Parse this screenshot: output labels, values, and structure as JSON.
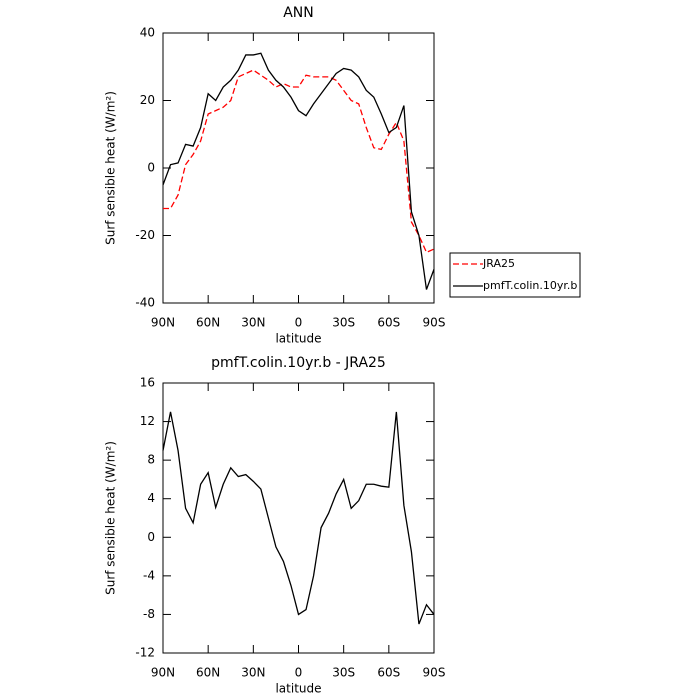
{
  "chart_data": [
    {
      "type": "line",
      "title": "ANN",
      "xlabel": "latitude",
      "ylabel": "Surf sensible heat (W/m²)",
      "x": [
        90,
        85,
        80,
        75,
        70,
        65,
        60,
        55,
        50,
        45,
        40,
        35,
        30,
        25,
        20,
        15,
        10,
        5,
        0,
        -5,
        -10,
        -15,
        -20,
        -25,
        -30,
        -35,
        -40,
        -45,
        -50,
        -55,
        -60,
        -65,
        -70,
        -75,
        -80,
        -85,
        -90
      ],
      "series": [
        {
          "name": "JRA25",
          "color": "#ff0000",
          "dashed": true,
          "values": [
            -12,
            -12,
            -8,
            1,
            4,
            8,
            16,
            17,
            18,
            20,
            27,
            28,
            29,
            27.5,
            26,
            24,
            25,
            24,
            24,
            27.5,
            27,
            27,
            27,
            26,
            23,
            20,
            19,
            12,
            6,
            5.5,
            10,
            13.5,
            8,
            -16,
            -20,
            -25,
            -24
          ]
        },
        {
          "name": "pmfT.colin.10yr.b",
          "color": "#000000",
          "dashed": false,
          "values": [
            -5,
            1,
            1.5,
            7,
            6.5,
            12,
            22,
            20,
            24,
            26,
            29,
            33.5,
            33.5,
            34,
            29,
            26,
            24,
            21,
            17,
            15.5,
            19,
            22,
            25,
            28,
            29.5,
            29,
            27,
            23,
            21,
            16,
            10.5,
            12,
            18.5,
            -13,
            -20,
            -36,
            -30
          ]
        }
      ],
      "xlim": [
        90,
        -90
      ],
      "xticks": [
        {
          "value": 90,
          "label": "90N"
        },
        {
          "value": 60,
          "label": "60N"
        },
        {
          "value": 30,
          "label": "30N"
        },
        0,
        {
          "value": -30,
          "label": "30S"
        },
        {
          "value": -60,
          "label": "60S"
        },
        {
          "value": -90,
          "label": "90S"
        }
      ],
      "ylim": [
        -40,
        40
      ],
      "yticks": [
        -40,
        -20,
        0,
        20,
        40
      ],
      "legend": "right"
    },
    {
      "type": "line",
      "title": "pmfT.colin.10yr.b - JRA25",
      "xlabel": "latitude",
      "ylabel": "Surf sensible heat (W/m²)",
      "x": [
        90,
        85,
        80,
        75,
        70,
        65,
        60,
        55,
        50,
        45,
        40,
        35,
        30,
        25,
        20,
        15,
        10,
        5,
        0,
        -5,
        -10,
        -15,
        -20,
        -25,
        -30,
        -35,
        -40,
        -45,
        -50,
        -55,
        -60,
        -65,
        -70,
        -75,
        -80,
        -85,
        -90
      ],
      "values": [
        9,
        13,
        9,
        3,
        1.5,
        5.5,
        6.7,
        3.1,
        5.5,
        7.2,
        6.3,
        6.5,
        5.8,
        5,
        2,
        -1,
        -2.5,
        -5,
        -8,
        -7.5,
        -4,
        1,
        2.5,
        4.5,
        6,
        3,
        3.8,
        5.5,
        5.5,
        5.3,
        5.2,
        13,
        3.3,
        -1.5,
        -9,
        -7,
        -8
      ],
      "color": "#000000",
      "xlim": [
        90,
        -90
      ],
      "xticks": [
        {
          "value": 90,
          "label": "90N"
        },
        {
          "value": 60,
          "label": "60N"
        },
        {
          "value": 30,
          "label": "30N"
        },
        0,
        {
          "value": -30,
          "label": "30S"
        },
        {
          "value": -60,
          "label": "60S"
        },
        {
          "value": -90,
          "label": "90S"
        }
      ],
      "ylim": [
        -12,
        16
      ],
      "yticks": [
        -12,
        -8,
        -4,
        0,
        4,
        8,
        12,
        16
      ]
    }
  ]
}
